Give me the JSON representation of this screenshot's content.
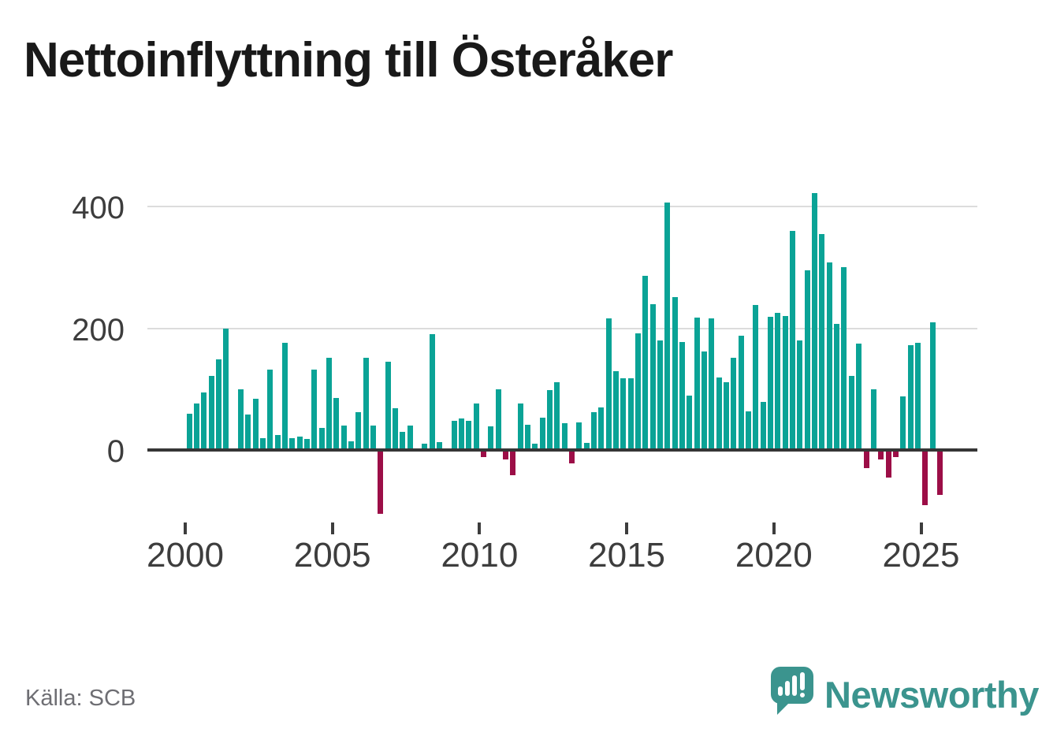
{
  "title": "Nettoinflyttning till Österåker",
  "footer": {
    "source": "Källa: SCB"
  },
  "brand": {
    "wordmark": "Newsworthy"
  },
  "colors": {
    "positive": "#0aa396",
    "negative": "#9c0e47",
    "logo": "#3b948e",
    "grid": "#dcdcdc",
    "zero_line": "#363636",
    "title_text": "#191919",
    "axis_text": "#3d3d3d",
    "source_text": "#6e6e73"
  },
  "chart_data": {
    "type": "bar",
    "title": "Nettoinflyttning till Österåker",
    "source": "Källa: SCB",
    "xlabel": "",
    "ylabel": "",
    "y_ticks": [
      0,
      200,
      400
    ],
    "y_tick_labels": [
      "0",
      "200",
      "400"
    ],
    "x_tick_years": [
      2000,
      2005,
      2010,
      2015,
      2020,
      2025
    ],
    "x_tick_labels": [
      "2000",
      "2005",
      "2010",
      "2015",
      "2020",
      "2025"
    ],
    "ylim": [
      -120,
      450
    ],
    "grid": "horizontal",
    "legend": "none",
    "positive_color": "#0aa396",
    "negative_color": "#9c0e47",
    "categories": [
      "2000 Q1",
      "2000 Q2",
      "2000 Q3",
      "2000 Q4",
      "2001 Q1",
      "2001 Q2",
      "2001 Q3",
      "2001 Q4",
      "2002 Q1",
      "2002 Q2",
      "2002 Q3",
      "2002 Q4",
      "2003 Q1",
      "2003 Q2",
      "2003 Q3",
      "2003 Q4",
      "2004 Q1",
      "2004 Q2",
      "2004 Q3",
      "2004 Q4",
      "2005 Q1",
      "2005 Q2",
      "2005 Q3",
      "2005 Q4",
      "2006 Q1",
      "2006 Q2",
      "2006 Q3",
      "2006 Q4",
      "2007 Q1",
      "2007 Q2",
      "2007 Q3",
      "2007 Q4",
      "2008 Q1",
      "2008 Q2",
      "2008 Q3",
      "2008 Q4",
      "2009 Q1",
      "2009 Q2",
      "2009 Q3",
      "2009 Q4",
      "2010 Q1",
      "2010 Q2",
      "2010 Q3",
      "2010 Q4",
      "2011 Q1",
      "2011 Q2",
      "2011 Q3",
      "2011 Q4",
      "2012 Q1",
      "2012 Q2",
      "2012 Q3",
      "2012 Q4",
      "2013 Q1",
      "2013 Q2",
      "2013 Q3",
      "2013 Q4",
      "2014 Q1",
      "2014 Q2",
      "2014 Q3",
      "2014 Q4",
      "2015 Q1",
      "2015 Q2",
      "2015 Q3",
      "2015 Q4",
      "2016 Q1",
      "2016 Q2",
      "2016 Q3",
      "2016 Q4",
      "2017 Q1",
      "2017 Q2",
      "2017 Q3",
      "2017 Q4",
      "2018 Q1",
      "2018 Q2",
      "2018 Q3",
      "2018 Q4",
      "2019 Q1",
      "2019 Q2",
      "2019 Q3",
      "2019 Q4",
      "2020 Q1",
      "2020 Q2",
      "2020 Q3",
      "2020 Q4",
      "2021 Q1",
      "2021 Q2",
      "2021 Q3",
      "2021 Q4",
      "2022 Q1",
      "2022 Q2",
      "2022 Q3",
      "2022 Q4",
      "2023 Q1",
      "2023 Q2",
      "2023 Q3",
      "2023 Q4",
      "2024 Q1",
      "2024 Q2",
      "2024 Q3",
      "2024 Q4",
      "2025 Q1",
      "2025 Q2",
      "2025 Q3"
    ],
    "values": [
      60,
      77,
      95,
      122,
      149,
      200,
      0,
      100,
      58,
      84,
      20,
      132,
      25,
      176,
      19,
      22,
      18,
      132,
      36,
      152,
      85,
      40,
      14,
      62,
      152,
      40,
      -105,
      145,
      69,
      30,
      40,
      0,
      10,
      191,
      13,
      0,
      48,
      52,
      48,
      77,
      -12,
      39,
      100,
      -16,
      -42,
      77,
      42,
      10,
      53,
      98,
      112,
      44,
      -22,
      45,
      12,
      62,
      70,
      217,
      130,
      118,
      118,
      192,
      286,
      240,
      180,
      407,
      251,
      178,
      89,
      218,
      162,
      216,
      119,
      112,
      152,
      188,
      64,
      238,
      79,
      219,
      225,
      220,
      360,
      180,
      296,
      422,
      355,
      309,
      208,
      301,
      122,
      175,
      -30,
      100,
      -16,
      -45,
      -12,
      88,
      172,
      176,
      -91,
      210,
      -74
    ]
  }
}
